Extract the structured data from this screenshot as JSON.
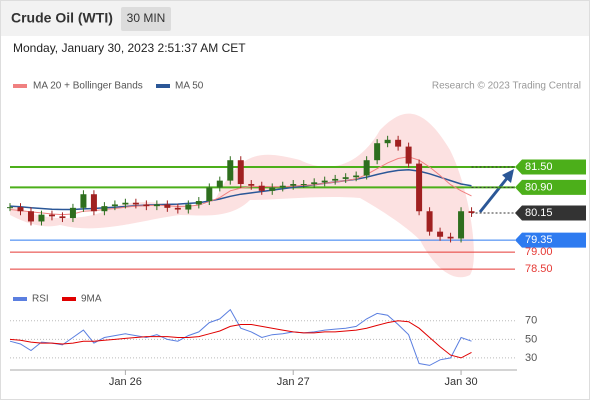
{
  "header": {
    "title": "Crude Oil (WTI)",
    "interval": "30 MIN",
    "date": "Monday, January 30, 2023 2:51:37 AM CET"
  },
  "legend": {
    "ma20": "MA 20 + Bollinger Bands",
    "ma20_color": "#f08080",
    "ma50": "MA 50",
    "ma50_color": "#2b5797",
    "credit": "Research © 2023 Trading Central"
  },
  "chart_data": [
    {
      "type": "candlestick",
      "xlim": [
        0,
        145
      ],
      "ylim": [
        78.12,
        83.47
      ],
      "xticks": [
        {
          "value": 33,
          "label": "Jan 26"
        },
        {
          "value": 81,
          "label": "Jan 27"
        },
        {
          "value": 129,
          "label": "Jan 30"
        }
      ],
      "x": [
        0,
        3,
        6,
        9,
        12,
        15,
        18,
        21,
        24,
        27,
        30,
        33,
        36,
        39,
        42,
        45,
        48,
        51,
        54,
        57,
        60,
        63,
        66,
        69,
        72,
        75,
        78,
        81,
        84,
        87,
        90,
        93,
        96,
        99,
        102,
        105,
        108,
        111,
        114,
        117,
        120,
        123,
        126,
        129,
        132
      ],
      "series": [
        {
          "name": "Price",
          "color": "#2e6e1e",
          "values": [
            80.32,
            80.2,
            79.9,
            80.1,
            80.05,
            80.0,
            80.3,
            80.7,
            80.2,
            80.35,
            80.4,
            80.45,
            80.4,
            80.35,
            80.4,
            80.3,
            80.25,
            80.4,
            80.5,
            80.9,
            81.1,
            81.7,
            81.0,
            80.95,
            80.8,
            80.9,
            80.95,
            81.0,
            81.0,
            81.05,
            81.1,
            81.15,
            81.2,
            81.25,
            81.7,
            82.2,
            82.3,
            82.1,
            81.6,
            80.2,
            79.6,
            79.45,
            79.4,
            80.2,
            80.15
          ]
        },
        {
          "name": "MA 20",
          "color": "#f08080",
          "values": [
            80.25,
            80.22,
            80.18,
            80.15,
            80.12,
            80.1,
            80.12,
            80.2,
            80.22,
            80.25,
            80.28,
            80.32,
            80.35,
            80.36,
            80.38,
            80.36,
            80.34,
            80.35,
            80.38,
            80.48,
            80.6,
            80.8,
            80.88,
            80.92,
            80.93,
            80.92,
            80.92,
            80.94,
            80.96,
            80.98,
            81.02,
            81.06,
            81.1,
            81.15,
            81.28,
            81.45,
            81.62,
            81.75,
            81.8,
            81.7,
            81.5,
            81.25,
            80.98,
            80.8,
            80.65
          ]
        },
        {
          "name": "MA 50",
          "color": "#2b5797",
          "values": [
            80.35,
            80.33,
            80.3,
            80.28,
            80.26,
            80.25,
            80.25,
            80.27,
            80.28,
            80.3,
            80.32,
            80.34,
            80.36,
            80.38,
            80.39,
            80.4,
            80.41,
            80.43,
            80.45,
            80.5,
            80.56,
            80.64,
            80.7,
            80.74,
            80.78,
            80.82,
            80.86,
            80.9,
            80.94,
            80.98,
            81.02,
            81.06,
            81.1,
            81.14,
            81.2,
            81.28,
            81.35,
            81.4,
            81.42,
            81.38,
            81.3,
            81.2,
            81.1,
            81.0,
            80.95
          ]
        }
      ],
      "levels": [
        {
          "value": 81.5,
          "label": "81.50",
          "color": "#4caf1a"
        },
        {
          "value": 80.9,
          "label": "80.90",
          "color": "#4caf1a"
        },
        {
          "value": 80.15,
          "label": "80.15",
          "color": "#333333"
        },
        {
          "value": 79.35,
          "label": "79.35",
          "color": "#2e7bf0"
        },
        {
          "value": 79.0,
          "label": "79.00",
          "color": "#e53935"
        },
        {
          "value": 78.5,
          "label": "78.50",
          "color": "#e53935"
        }
      ]
    },
    {
      "type": "line",
      "ylim": [
        17,
        87
      ],
      "yticks": [
        70,
        50,
        30
      ],
      "series": [
        {
          "name": "RSI",
          "color": "#5b7fe0",
          "values": [
            48,
            45,
            38,
            47,
            46,
            44,
            52,
            60,
            46,
            52,
            54,
            56,
            54,
            52,
            55,
            50,
            48,
            54,
            58,
            68,
            72,
            82,
            62,
            58,
            52,
            55,
            56,
            58,
            57,
            58,
            60,
            61,
            62,
            64,
            72,
            78,
            76,
            66,
            55,
            24,
            22,
            28,
            30,
            52,
            48
          ]
        },
        {
          "name": "9MA",
          "color": "#e00000",
          "values": [
            50,
            49,
            47,
            46,
            46,
            45,
            46,
            48,
            48,
            49,
            50,
            51,
            52,
            53,
            53,
            53,
            52,
            52,
            53,
            56,
            59,
            64,
            66,
            66,
            64,
            62,
            60,
            58,
            57,
            57,
            58,
            58,
            59,
            60,
            62,
            65,
            68,
            70,
            69,
            62,
            52,
            42,
            33,
            30,
            36
          ]
        }
      ]
    }
  ]
}
